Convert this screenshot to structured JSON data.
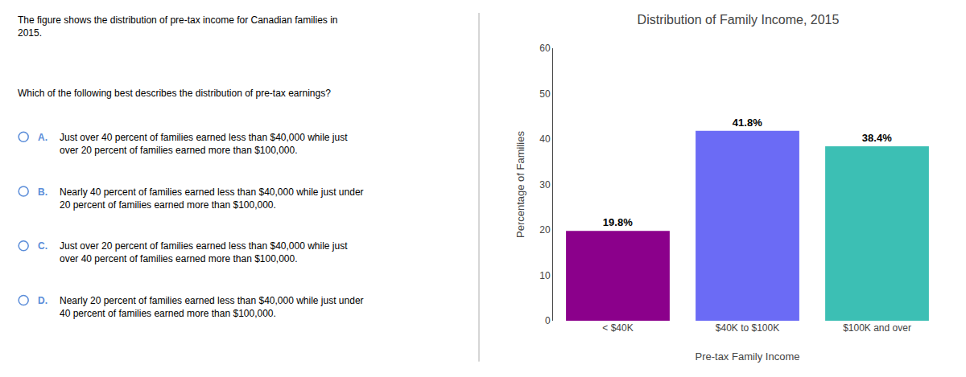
{
  "chart_data": {
    "type": "bar",
    "title": "Distribution of Family Income, 2015",
    "xlabel": "Pre-tax Family Income",
    "ylabel": "Percentage of Families",
    "categories": [
      "< $40K",
      "$40K to $100K",
      "$100K and over"
    ],
    "values": [
      19.8,
      41.8,
      38.4
    ],
    "value_labels": [
      "19.8%",
      "41.8%",
      "38.4%"
    ],
    "data_labels": true,
    "colors": [
      "#8B008B",
      "#6B6BF5",
      "#3CBFB4"
    ],
    "ylim": [
      0,
      60
    ],
    "yticks": [
      0,
      10,
      20,
      30,
      40,
      50,
      60
    ],
    "grid": false,
    "annotations": [
      "The figure shows the distribution of pre-tax income for Canadian families in\n2015.",
      "Which of the following best describes the distribution of pre-tax earnings?",
      "A.",
      "Just over 40 percent of families earned less than $40,000 while just\nover 20 percent of families earned more than $100,000.",
      "B.",
      "Nearly 40 percent of families earned less than $40,000 while just under\n20 percent of families earned more than $100,000.",
      "C.",
      "Just over 20 percent of families earned less than $40,000 while just\nover 40 percent of families earned more than $100,000.",
      "D.",
      "Nearly 20 percent of families earned less than $40,000 while just under\n40 percent of families earned more than $100,000."
    ]
  }
}
